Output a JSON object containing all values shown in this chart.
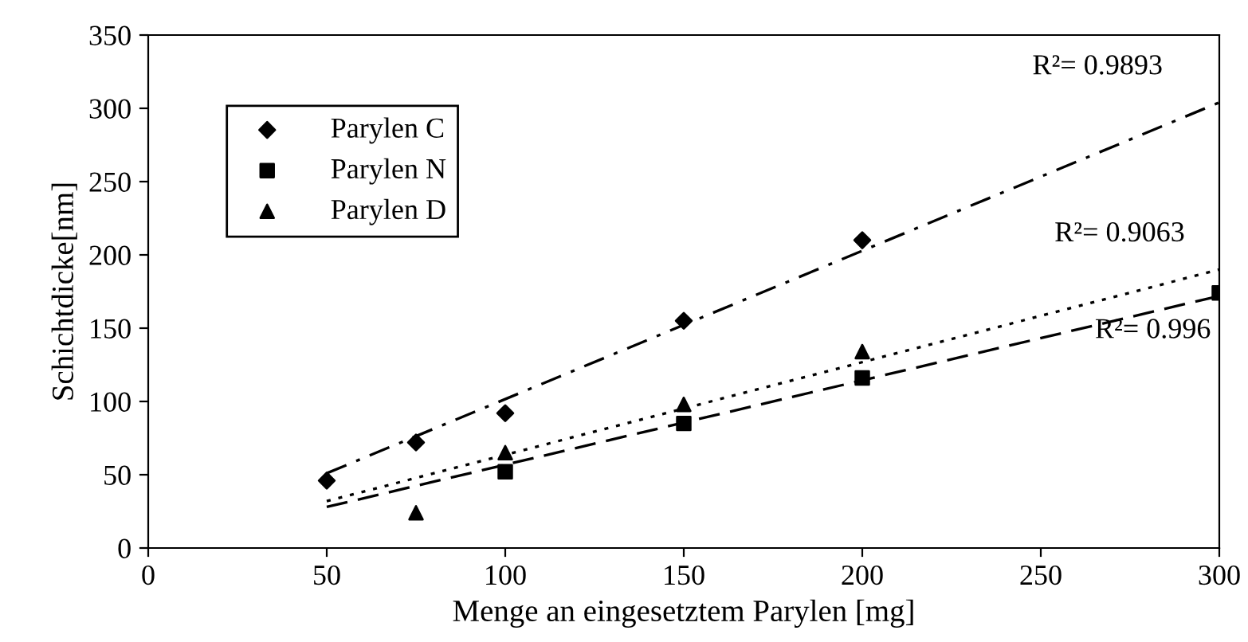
{
  "chart_data": {
    "type": "scatter",
    "xlabel": "Menge an eingesetztem Parylen [mg]",
    "ylabel": "Schichtdicke[nm]",
    "xlim": [
      0,
      300
    ],
    "xticks": [
      0,
      50,
      100,
      150,
      200,
      250,
      300
    ],
    "ylim": [
      0,
      350
    ],
    "yticks": [
      0,
      50,
      100,
      150,
      200,
      250,
      300,
      350
    ],
    "grid": false,
    "legend": "top left",
    "series": [
      {
        "name": "Parylen C",
        "color": "#000000",
        "marker": "diamond",
        "x": [
          50,
          75,
          100,
          150,
          200
        ],
        "values": [
          46,
          72,
          92,
          155,
          210
        ]
      },
      {
        "name": "Parylen N",
        "color": "#000000",
        "marker": "square",
        "x": [
          100,
          150,
          200,
          300
        ],
        "values": [
          52,
          85,
          116,
          174
        ]
      },
      {
        "name": "Parylen D",
        "color": "#000000",
        "marker": "triangle",
        "x": [
          75,
          100,
          150,
          200
        ],
        "values": [
          24,
          65,
          98,
          134
        ]
      },
      {
        "type": "line",
        "color": "#000000",
        "line_style": "dashdot",
        "marker": "none",
        "x": [
          50,
          300
        ],
        "values": [
          51,
          304
        ]
      },
      {
        "type": "line",
        "color": "#000000",
        "line_style": "dotted",
        "marker": "none",
        "x": [
          50,
          300
        ],
        "values": [
          32,
          190
        ]
      },
      {
        "type": "line",
        "color": "#000000",
        "line_style": "dashed",
        "marker": "none",
        "x": [
          50,
          300
        ],
        "values": [
          28,
          172
        ]
      }
    ],
    "annotations": [
      "R²= 0.9893",
      "R²= 0.9063",
      "R²= 0.996"
    ]
  }
}
